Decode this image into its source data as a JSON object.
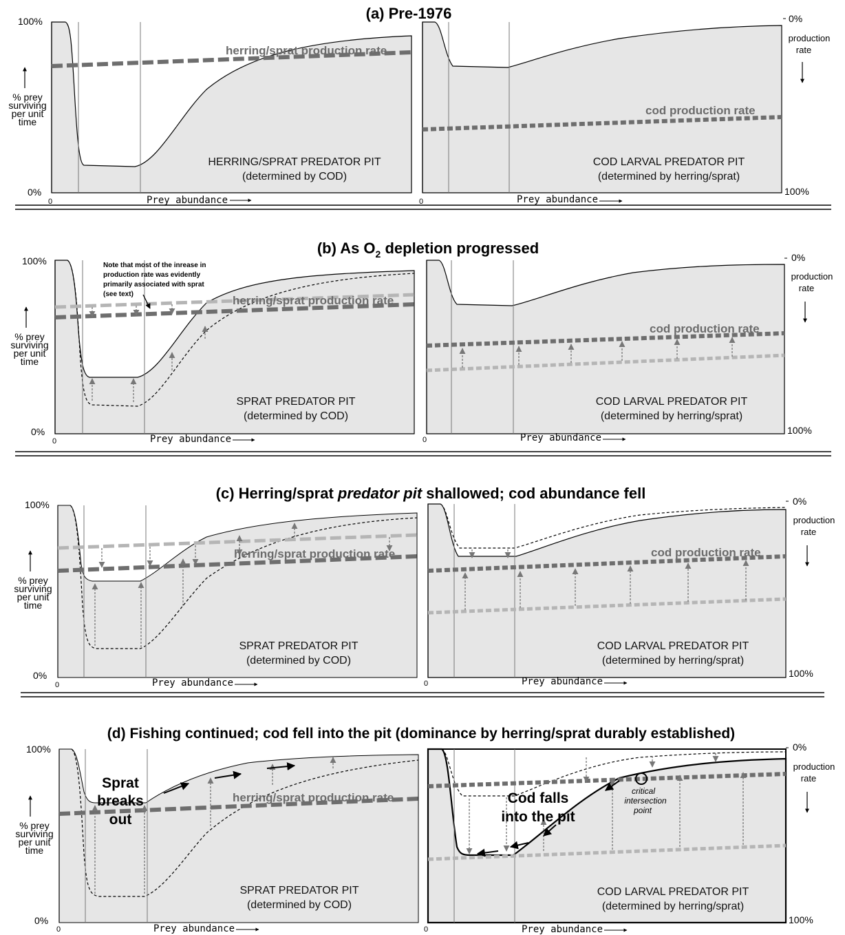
{
  "rows": [
    {
      "title": "(a) Pre-1976",
      "left": {
        "pit_line1": "HERRING/SPRAT PREDATOR PIT",
        "pit_line2": "(determined by COD)",
        "rate_label": "herring/sprat production rate"
      },
      "right": {
        "pit_line1": "COD LARVAL PREDATOR PIT",
        "pit_line2": "(determined by herring/sprat)",
        "rate_label": "cod production rate"
      }
    },
    {
      "title_main": "(b) As O",
      "title_sub": "2",
      "title_rest": " depletion progressed",
      "note_lines": [
        "Note that most of the inrease in",
        "production rate was evidently",
        "primarily associated with sprat",
        "(see text)"
      ],
      "left": {
        "pit_line1": "SPRAT PREDATOR PIT",
        "pit_line2": "(determined by COD)",
        "rate_label": "herring/sprat production rate"
      },
      "right": {
        "pit_line1": "COD LARVAL PREDATOR PIT",
        "pit_line2": "(determined by herring/sprat)",
        "rate_label": "cod production rate"
      }
    },
    {
      "title_a": "(c) Herring/sprat ",
      "title_b": "predator pit",
      "title_c": " shallowed; cod abundance fell",
      "left": {
        "pit_line1": "SPRAT PREDATOR PIT",
        "pit_line2": "(determined by COD)",
        "rate_label": "herring/sprat production rate"
      },
      "right": {
        "pit_line1": "COD LARVAL PREDATOR PIT",
        "pit_line2": "(determined by herring/sprat)",
        "rate_label": "cod production rate"
      }
    },
    {
      "title": "(d) Fishing continued; cod fell into the pit (dominance by herring/sprat durably established)",
      "left": {
        "pit_line1": "SPRAT PREDATOR PIT",
        "pit_line2": "(determined by COD)",
        "rate_label": "herring/sprat production rate",
        "callout": [
          "Sprat",
          "breaks",
          "out"
        ]
      },
      "right": {
        "pit_line1": "COD LARVAL PREDATOR PIT",
        "pit_line2": "(determined by herring/sprat)",
        "callout": [
          "Cod falls",
          "into the pit"
        ],
        "critical": [
          "critical",
          "intersection",
          "point"
        ]
      }
    }
  ],
  "axes": {
    "y_top": "100%",
    "y_bottom": "0%",
    "x_zero": "0",
    "x_label": "Prey abundance",
    "y_label": [
      "% prey",
      "surviving",
      "per unit",
      "time"
    ],
    "r_top": "0%",
    "r_bottom": "100%",
    "r_label": [
      "production",
      "rate"
    ]
  },
  "colors": {
    "panel_fill": "#e6e6e6",
    "rate_dark": "#6e6e6e",
    "rate_light": "#b5b5b5"
  }
}
